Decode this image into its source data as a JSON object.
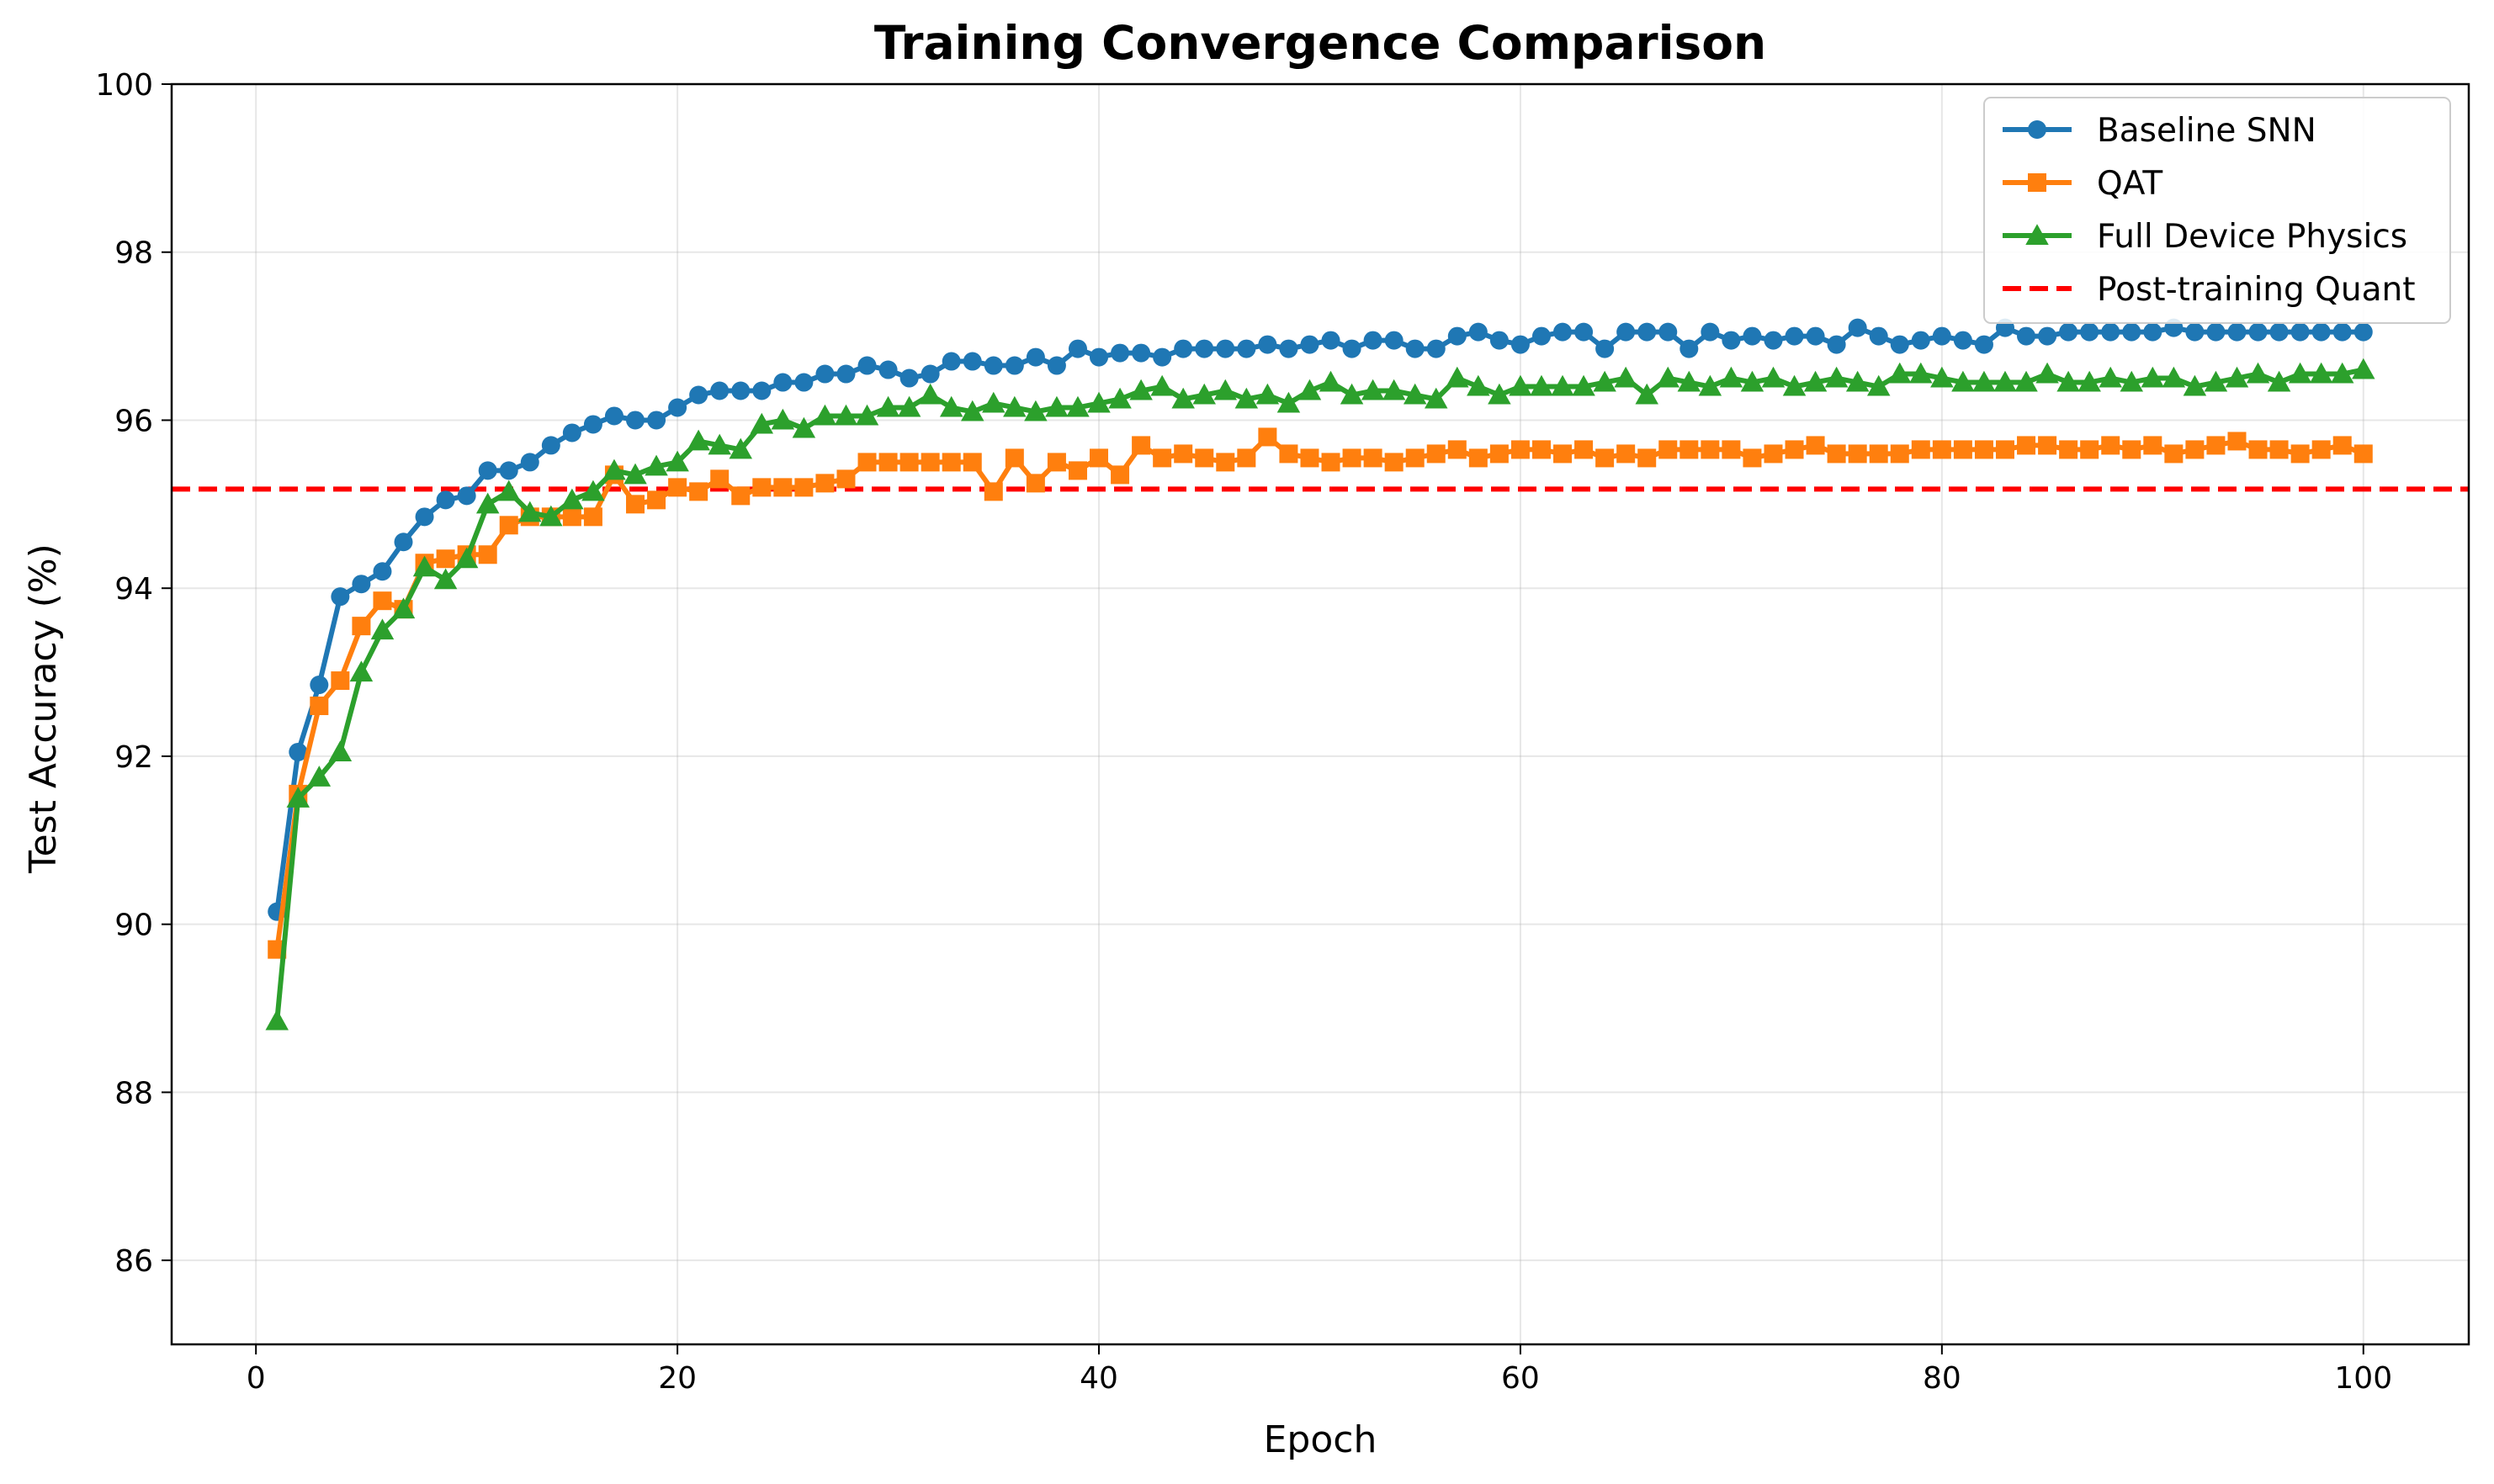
{
  "chart_data": {
    "type": "line",
    "title": "Training Convergence Comparison",
    "xlabel": "Epoch",
    "ylabel": "Test Accuracy (%)",
    "xlim": [
      -4,
      105
    ],
    "ylim": [
      85,
      100
    ],
    "xticks": [
      0,
      20,
      40,
      60,
      80,
      100
    ],
    "yticks": [
      86,
      88,
      90,
      92,
      94,
      96,
      98,
      100
    ],
    "grid": true,
    "legend_position": "top-right",
    "x_start": 1,
    "x_end": 100,
    "series": [
      {
        "name": "Baseline SNN",
        "color": "#1f77b4",
        "marker": "circle",
        "values": [
          90.15,
          92.05,
          92.85,
          93.9,
          94.05,
          94.2,
          94.55,
          94.85,
          95.05,
          95.1,
          95.4,
          95.4,
          95.5,
          95.7,
          95.85,
          95.95,
          96.05,
          96.0,
          96.0,
          96.15,
          96.3,
          96.35,
          96.35,
          96.35,
          96.45,
          96.45,
          96.55,
          96.55,
          96.65,
          96.6,
          96.5,
          96.55,
          96.7,
          96.7,
          96.65,
          96.65,
          96.75,
          96.65,
          96.85,
          96.75,
          96.8,
          96.8,
          96.75,
          96.85,
          96.85,
          96.85,
          96.85,
          96.9,
          96.85,
          96.9,
          96.95,
          96.85,
          96.95,
          96.95,
          96.85,
          96.85,
          97.0,
          97.05,
          96.95,
          96.9,
          97.0,
          97.05,
          97.05,
          96.85,
          97.05,
          97.05,
          97.05,
          96.85,
          97.05,
          96.95,
          97.0,
          96.95,
          97.0,
          97.0,
          96.9,
          97.1,
          97.0,
          96.9,
          96.95,
          97.0,
          96.95,
          96.9,
          97.1,
          97.0,
          97.0,
          97.05,
          97.05,
          97.05,
          97.05,
          97.05,
          97.1,
          97.05,
          97.05,
          97.05,
          97.05,
          97.05,
          97.05,
          97.05,
          97.05,
          97.05
        ]
      },
      {
        "name": "QAT",
        "color": "#ff7f0e",
        "marker": "square",
        "values": [
          89.7,
          91.55,
          92.6,
          92.9,
          93.55,
          93.85,
          93.75,
          94.3,
          94.35,
          94.4,
          94.4,
          94.75,
          94.85,
          94.85,
          94.85,
          94.85,
          95.35,
          95.0,
          95.05,
          95.2,
          95.15,
          95.3,
          95.1,
          95.2,
          95.2,
          95.2,
          95.25,
          95.3,
          95.5,
          95.5,
          95.5,
          95.5,
          95.5,
          95.5,
          95.15,
          95.55,
          95.25,
          95.5,
          95.4,
          95.55,
          95.35,
          95.7,
          95.55,
          95.6,
          95.55,
          95.5,
          95.55,
          95.8,
          95.6,
          95.55,
          95.5,
          95.55,
          95.55,
          95.5,
          95.55,
          95.6,
          95.65,
          95.55,
          95.6,
          95.65,
          95.65,
          95.6,
          95.65,
          95.55,
          95.6,
          95.55,
          95.65,
          95.65,
          95.65,
          95.65,
          95.55,
          95.6,
          95.65,
          95.7,
          95.6,
          95.6,
          95.6,
          95.6,
          95.65,
          95.65,
          95.65,
          95.65,
          95.65,
          95.7,
          95.7,
          95.65,
          95.65,
          95.7,
          95.65,
          95.7,
          95.6,
          95.65,
          95.7,
          95.75,
          95.65,
          95.65,
          95.6,
          95.65,
          95.7,
          95.6
        ]
      },
      {
        "name": "Full Device Physics",
        "color": "#2ca02c",
        "marker": "triangle",
        "values": [
          88.85,
          91.5,
          91.75,
          92.05,
          93.0,
          93.5,
          93.75,
          94.25,
          94.1,
          94.35,
          95.0,
          95.15,
          94.9,
          94.85,
          95.05,
          95.15,
          95.4,
          95.35,
          95.45,
          95.5,
          95.75,
          95.7,
          95.65,
          95.95,
          96.0,
          95.9,
          96.05,
          96.05,
          96.05,
          96.15,
          96.15,
          96.3,
          96.15,
          96.1,
          96.2,
          96.15,
          96.1,
          96.15,
          96.15,
          96.2,
          96.25,
          96.35,
          96.4,
          96.25,
          96.3,
          96.35,
          96.25,
          96.3,
          96.2,
          96.35,
          96.45,
          96.3,
          96.35,
          96.35,
          96.3,
          96.25,
          96.5,
          96.4,
          96.3,
          96.4,
          96.4,
          96.4,
          96.4,
          96.45,
          96.5,
          96.3,
          96.5,
          96.45,
          96.4,
          96.5,
          96.45,
          96.5,
          96.4,
          96.45,
          96.5,
          96.45,
          96.4,
          96.55,
          96.55,
          96.5,
          96.45,
          96.45,
          96.45,
          96.45,
          96.55,
          96.45,
          96.45,
          96.5,
          96.45,
          96.5,
          96.5,
          96.4,
          96.45,
          96.5,
          96.55,
          96.45,
          96.55,
          96.55,
          96.55,
          96.6
        ]
      }
    ],
    "reference_lines": [
      {
        "name": "Post-training Quant",
        "color": "#ff0000",
        "style": "dashed",
        "y": 95.18
      }
    ]
  }
}
